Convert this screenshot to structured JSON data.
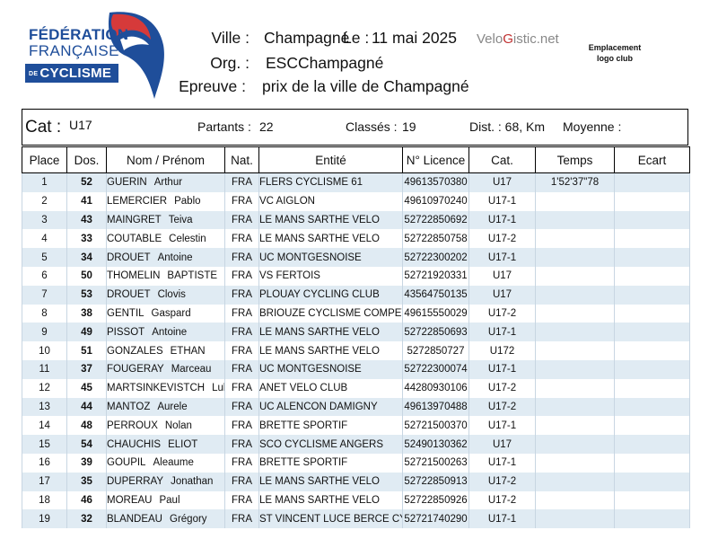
{
  "logo": {
    "line1": "FÉDÉRATION",
    "line2": "FRANÇAISE",
    "prefix": "DE",
    "line3": "CYCLISME"
  },
  "header": {
    "ville_label": "Ville :",
    "ville_value": "Champagné",
    "le_label": "Le :",
    "date": "11 mai 2025",
    "org_label": "Org. :",
    "org_value": "ESCChampagné",
    "epreuve_label": "Epreuve :",
    "epreuve_value": "prix de la ville de Champagné",
    "brand_a": "Velo",
    "brand_g": "G",
    "brand_b": "istic.net",
    "club_logo_line1": "Emplacement",
    "club_logo_line2": "logo club"
  },
  "info": {
    "cat_label": "Cat :",
    "cat_value": "U17",
    "partants_label": "Partants :",
    "partants_value": "22",
    "classes_label": "Classés :",
    "classes_value": "19",
    "dist": "Dist. : 68, Km",
    "moyenne_label": "Moyenne :"
  },
  "columns": [
    "Place",
    "Dos.",
    "Nom  /  Prénom",
    "Nat.",
    "Entité",
    "N° Licence",
    "Cat.",
    "Temps",
    "Ecart"
  ],
  "rows": [
    {
      "place": "1",
      "dos": "52",
      "nom": "GUERIN",
      "prenom": "Arthur",
      "nat": "FRA",
      "entite": "FLERS CYCLISME 61",
      "licence": "49613570380",
      "cat": "U17",
      "temps": "1'52'37\"78",
      "ecart": ""
    },
    {
      "place": "2",
      "dos": "41",
      "nom": "LEMERCIER",
      "prenom": "Pablo",
      "nat": "FRA",
      "entite": "VC AIGLON",
      "licence": "49610970240",
      "cat": "U17-1",
      "temps": "",
      "ecart": ""
    },
    {
      "place": "3",
      "dos": "43",
      "nom": "MAINGRET",
      "prenom": "Teiva",
      "nat": "FRA",
      "entite": "LE MANS SARTHE VELO",
      "licence": "52722850692",
      "cat": "U17-1",
      "temps": "",
      "ecart": ""
    },
    {
      "place": "4",
      "dos": "33",
      "nom": "COUTABLE",
      "prenom": "Celestin",
      "nat": "FRA",
      "entite": "LE MANS SARTHE VELO",
      "licence": "52722850758",
      "cat": "U17-2",
      "temps": "",
      "ecart": ""
    },
    {
      "place": "5",
      "dos": "34",
      "nom": "DROUET",
      "prenom": "Antoine",
      "nat": "FRA",
      "entite": "UC MONTGESNOISE",
      "licence": "52722300202",
      "cat": "U17-1",
      "temps": "",
      "ecart": ""
    },
    {
      "place": "6",
      "dos": "50",
      "nom": "THOMELIN",
      "prenom": "BAPTISTE",
      "nat": "FRA",
      "entite": "VS FERTOIS",
      "licence": "52721920331",
      "cat": "U17",
      "temps": "",
      "ecart": ""
    },
    {
      "place": "7",
      "dos": "53",
      "nom": "DROUET",
      "prenom": "Clovis",
      "nat": "FRA",
      "entite": "PLOUAY CYCLING CLUB",
      "licence": "43564750135",
      "cat": "U17",
      "temps": "",
      "ecart": ""
    },
    {
      "place": "8",
      "dos": "38",
      "nom": "GENTIL",
      "prenom": "Gaspard",
      "nat": "FRA",
      "entite": "BRIOUZE CYCLISME COMPETITION",
      "licence": "49615550029",
      "cat": "U17-2",
      "temps": "",
      "ecart": ""
    },
    {
      "place": "9",
      "dos": "49",
      "nom": "PISSOT",
      "prenom": "Antoine",
      "nat": "FRA",
      "entite": "LE MANS SARTHE VELO",
      "licence": "52722850693",
      "cat": "U17-1",
      "temps": "",
      "ecart": ""
    },
    {
      "place": "10",
      "dos": "51",
      "nom": "GONZALES",
      "prenom": "ETHAN",
      "nat": "FRA",
      "entite": "LE MANS SARTHE VELO",
      "licence": "5272850727",
      "cat": "U172",
      "temps": "",
      "ecart": ""
    },
    {
      "place": "11",
      "dos": "37",
      "nom": "FOUGERAY",
      "prenom": "Marceau",
      "nat": "FRA",
      "entite": "UC MONTGESNOISE",
      "licence": "52722300074",
      "cat": "U17-1",
      "temps": "",
      "ecart": ""
    },
    {
      "place": "12",
      "dos": "45",
      "nom": "MARTSINKEVISTCH",
      "prenom": "Luka",
      "nat": "FRA",
      "entite": "ANET VELO CLUB",
      "licence": "44280930106",
      "cat": "U17-2",
      "temps": "",
      "ecart": ""
    },
    {
      "place": "13",
      "dos": "44",
      "nom": "MANTOZ",
      "prenom": "Aurele",
      "nat": "FRA",
      "entite": "UC ALENCON DAMIGNY",
      "licence": "49613970488",
      "cat": "U17-2",
      "temps": "",
      "ecart": ""
    },
    {
      "place": "14",
      "dos": "48",
      "nom": "PERROUX",
      "prenom": "Nolan",
      "nat": "FRA",
      "entite": "BRETTE SPORTIF",
      "licence": "52721500370",
      "cat": "U17-1",
      "temps": "",
      "ecart": ""
    },
    {
      "place": "15",
      "dos": "54",
      "nom": "CHAUCHIS",
      "prenom": "ELIOT",
      "nat": "FRA",
      "entite": "SCO CYCLISME ANGERS",
      "licence": "52490130362",
      "cat": "U17",
      "temps": "",
      "ecart": ""
    },
    {
      "place": "16",
      "dos": "39",
      "nom": "GOUPIL",
      "prenom": "Aleaume",
      "nat": "FRA",
      "entite": "BRETTE SPORTIF",
      "licence": "52721500263",
      "cat": "U17-1",
      "temps": "",
      "ecart": ""
    },
    {
      "place": "17",
      "dos": "35",
      "nom": "DUPERRAY",
      "prenom": "Jonathan",
      "nat": "FRA",
      "entite": "LE MANS SARTHE VELO",
      "licence": "52722850913",
      "cat": "U17-2",
      "temps": "",
      "ecart": ""
    },
    {
      "place": "18",
      "dos": "46",
      "nom": "MOREAU",
      "prenom": "Paul",
      "nat": "FRA",
      "entite": "LE MANS SARTHE VELO",
      "licence": "52722850926",
      "cat": "U17-2",
      "temps": "",
      "ecart": ""
    },
    {
      "place": "19",
      "dos": "32",
      "nom": "BLANDEAU",
      "prenom": "Grégory",
      "nat": "FRA",
      "entite": "ST VINCENT LUCE BERCE CYCLISTE",
      "licence": "52721740290",
      "cat": "U17-1",
      "temps": "",
      "ecart": ""
    }
  ]
}
